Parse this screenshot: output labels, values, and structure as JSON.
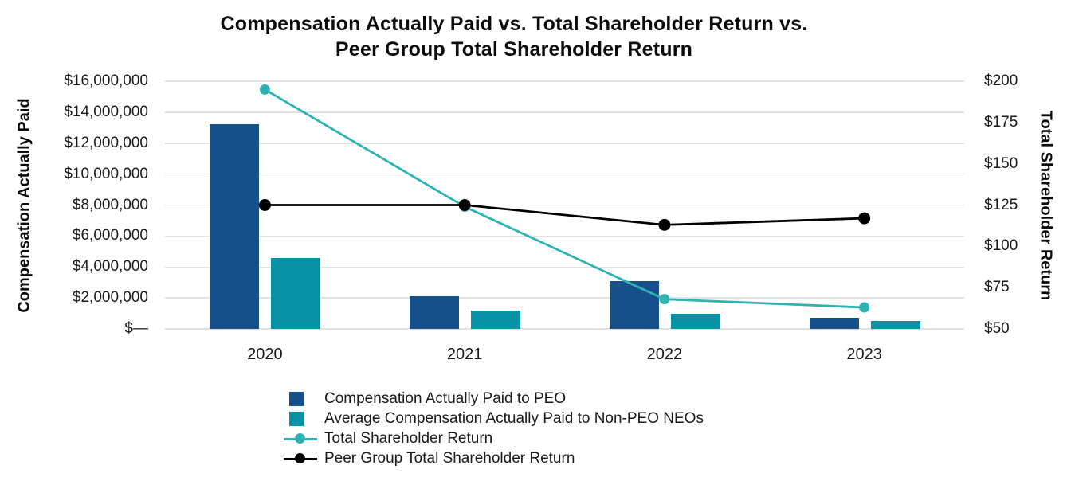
{
  "title": {
    "line1": "Compensation Actually Paid vs. Total Shareholder Return vs.",
    "line2": "Peer Group Total Shareholder Return"
  },
  "colors": {
    "peo_bar": "#15508C",
    "neo_bar": "#0892A5",
    "tsr_line": "#2EB3B2",
    "peer_line": "#000000",
    "gridline": "#E2E2E2",
    "text": "#1A1A1A"
  },
  "chart_data": {
    "type": "bar",
    "subtype": "combo-bar-line-dual-axis",
    "title": "Compensation Actually Paid vs. Total Shareholder Return vs. Peer Group Total Shareholder Return",
    "categories": [
      "2020",
      "2021",
      "2022",
      "2023"
    ],
    "series": [
      {
        "name": "Compensation Actually Paid to PEO",
        "type": "bar",
        "axis": "left",
        "color": "#15508C",
        "values": [
          13200000,
          2100000,
          3100000,
          700000
        ]
      },
      {
        "name": "Average Compensation Actually Paid to Non-PEO NEOs",
        "type": "bar",
        "axis": "left",
        "color": "#0892A5",
        "values": [
          4600000,
          1200000,
          1000000,
          500000
        ]
      },
      {
        "name": "Total Shareholder Return",
        "type": "line",
        "axis": "right",
        "color": "#2EB3B2",
        "marker_radius": 6.5,
        "values": [
          195,
          124,
          68,
          63
        ]
      },
      {
        "name": "Peer Group Total Shareholder Return",
        "type": "line",
        "axis": "right",
        "color": "#000000",
        "marker_radius": 7.5,
        "values": [
          125,
          125,
          113,
          117
        ]
      }
    ],
    "left_axis": {
      "title": "Compensation Actually Paid",
      "min": 0,
      "max": 16000000,
      "ticks": [
        {
          "value": 16000000,
          "label": "$16,000,000"
        },
        {
          "value": 14000000,
          "label": "$14,000,000"
        },
        {
          "value": 12000000,
          "label": "$12,000,000"
        },
        {
          "value": 10000000,
          "label": "$10,000,000"
        },
        {
          "value": 8000000,
          "label": "$8,000,000"
        },
        {
          "value": 6000000,
          "label": "$6,000,000"
        },
        {
          "value": 4000000,
          "label": "$4,000,000"
        },
        {
          "value": 2000000,
          "label": "$2,000,000"
        },
        {
          "value": 0,
          "label": "$—"
        }
      ]
    },
    "right_axis": {
      "title": "Total Shareholder Return",
      "min": 50,
      "max": 200,
      "ticks": [
        {
          "value": 200,
          "label": "$200"
        },
        {
          "value": 175,
          "label": "$175"
        },
        {
          "value": 150,
          "label": "$150"
        },
        {
          "value": 125,
          "label": "$125"
        },
        {
          "value": 100,
          "label": "$100"
        },
        {
          "value": 75,
          "label": "$75"
        },
        {
          "value": 50,
          "label": "$50"
        }
      ]
    },
    "grid": "horizontal",
    "legend_position": "bottom-left"
  }
}
